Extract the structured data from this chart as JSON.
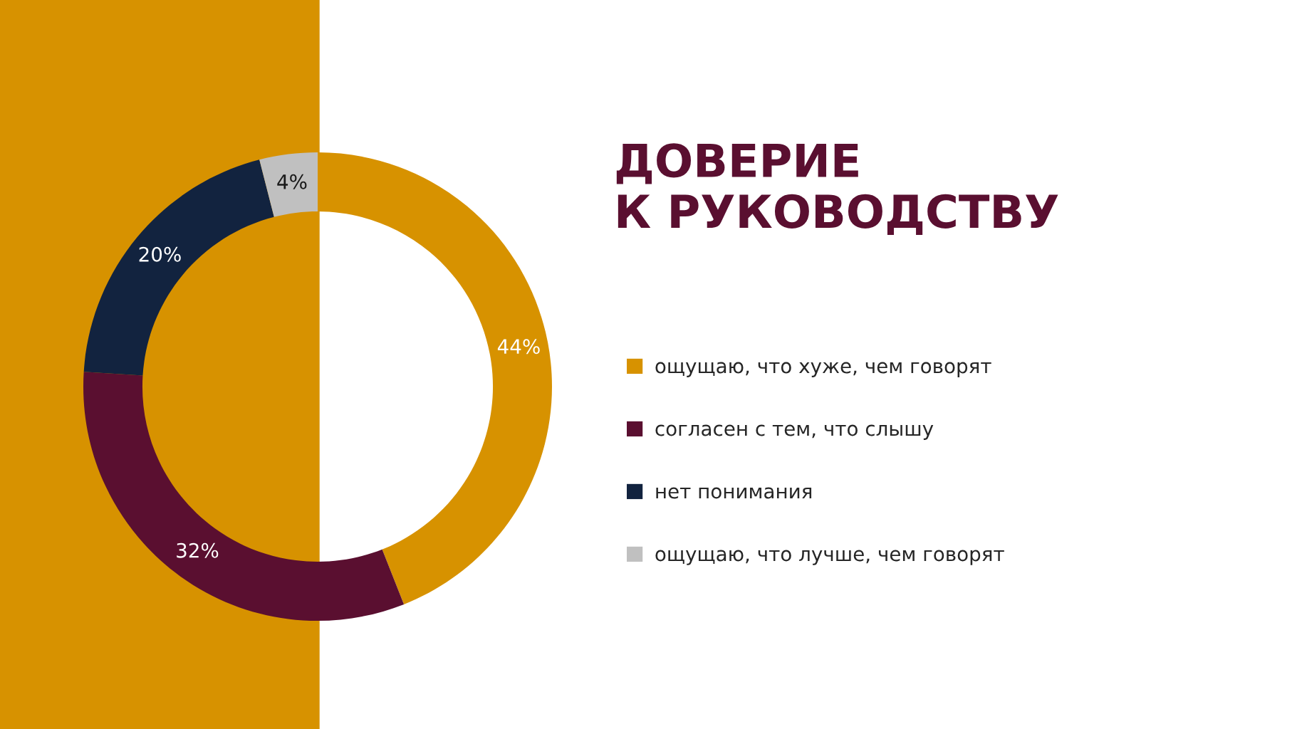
{
  "chart_data": {
    "type": "donut",
    "title": "ДОВЕРИЕ\nК РУКОВОДСТВУ",
    "categories": [
      "ощущаю, что хуже, чем говорят",
      "согласен с тем, что слышу",
      "нет понимания",
      "ощущаю, что лучше, чем говорят"
    ],
    "values": [
      44,
      32,
      20,
      4
    ],
    "value_labels": [
      "44%",
      "32%",
      "20%",
      "4%"
    ],
    "colors": [
      "#d79200",
      "#5a0f30",
      "#12233f",
      "#c0c0c0"
    ],
    "legend": "right"
  }
}
